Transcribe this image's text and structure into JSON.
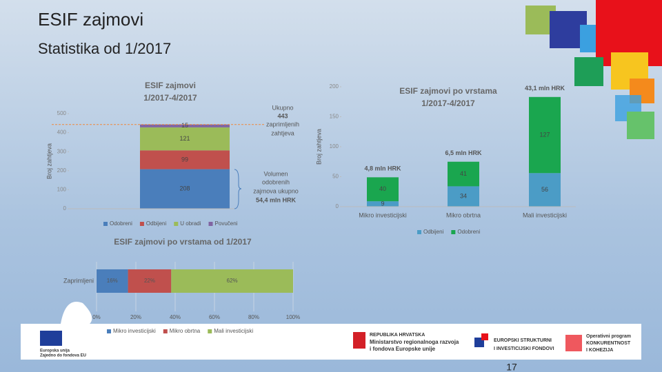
{
  "slide": {
    "title": "ESIF zajmovi",
    "subtitle": "Statistika od 1/2017",
    "page_number": "17",
    "footer": [
      "Europska unija",
      "Zajedno do fondova EU",
      "REPUBLIKA HRVATSKA",
      "Ministarstvo regionalnoga razvoja",
      "i fondova Europske unije",
      "EUROPSKI STRUKTURNI",
      "I INVESTICIJSKI FONDOVI",
      "Operativni program",
      "KONKURENTNOST",
      "I KOHEZIJA"
    ]
  },
  "chart_data": [
    {
      "type": "bar",
      "stacked": true,
      "title": [
        "ESIF zajmovi",
        "1/2017-4/2017"
      ],
      "y_label": "Broj zahtjeva",
      "categories": [
        null
      ],
      "series": [
        {
          "name": "Odobreni",
          "color": "#4a7ebb",
          "values": [
            208
          ]
        },
        {
          "name": "Odbijeni",
          "color": "#c0504d",
          "values": [
            99
          ]
        },
        {
          "name": "U obradi",
          "color": "#9bbb59",
          "values": [
            121
          ]
        },
        {
          "name": "Povučeni",
          "color": "#8064a2",
          "values": [
            15
          ]
        }
      ],
      "ylim": [
        0,
        500
      ],
      "yticks": [
        0,
        100,
        200,
        300,
        400,
        500
      ],
      "legend": "bottom",
      "total": 443,
      "annotations": [
        "Ukupno",
        "zaprimljenih",
        "zahtjeva",
        "Volumen",
        "odobrenih",
        "zajmova ukupno",
        "54,4 mln HRK"
      ]
    },
    {
      "type": "bar",
      "stacked": true,
      "title": [
        "ESIF zajmovi po vrstama",
        "1/2017-4/2017"
      ],
      "y_label": "Broj zahtjeva",
      "categories": [
        "Mikro investicijski",
        "Mikro obrtna",
        "Mali investicijski"
      ],
      "series": [
        {
          "name": "Odbijeni",
          "color": "#4b9cc6",
          "values": [
            9,
            34,
            56
          ]
        },
        {
          "name": "Odobreni",
          "color": "#1aa64f",
          "values": [
            40,
            41,
            127
          ]
        }
      ],
      "ylim": [
        0,
        200
      ],
      "yticks": [
        0,
        50,
        100,
        150,
        200
      ],
      "legend": "bottom",
      "bar_annotations": [
        "4,8 mln HRK",
        "6,5 mln HRK",
        "43,1 mln HRK"
      ]
    },
    {
      "type": "hbar",
      "stacked": true,
      "title": [
        "ESIF zajmovi po vrstama od 1/2017"
      ],
      "categories": [
        "Zaprimljeni"
      ],
      "series": [
        {
          "name": "Mikro investicijski",
          "color": "#4a7ebb",
          "values": [
            16
          ],
          "value_labels": [
            "16%"
          ]
        },
        {
          "name": "Mikro obrtna",
          "color": "#c0504d",
          "values": [
            22
          ],
          "value_labels": [
            "22%"
          ]
        },
        {
          "name": "Mali investicijski",
          "color": "#9bbb59",
          "values": [
            62
          ],
          "value_labels": [
            "62%"
          ]
        }
      ],
      "xlim": [
        0,
        100
      ],
      "xticks": [
        {
          "value": 0,
          "label": "0%"
        },
        {
          "value": 20,
          "label": "20%"
        },
        {
          "value": 40,
          "label": "40%"
        },
        {
          "value": 60,
          "label": "60%"
        },
        {
          "value": 80,
          "label": "80%"
        },
        {
          "value": 100,
          "label": "100%"
        }
      ],
      "legend": "bottom"
    }
  ]
}
